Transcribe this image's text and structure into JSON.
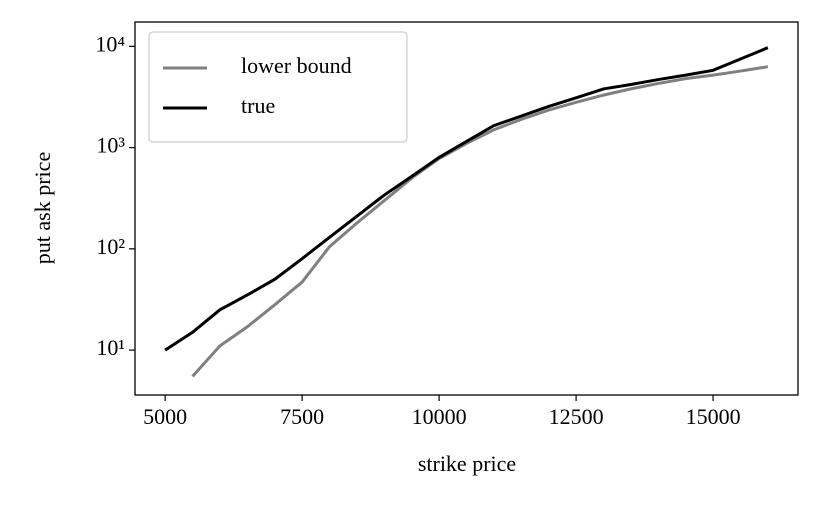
{
  "chart_data": {
    "type": "line",
    "log_y": true,
    "grid": false,
    "legend": "upper left",
    "xlabel": "strike price",
    "ylabel": "put ask price",
    "x": [
      5000,
      5500,
      6000,
      6500,
      7000,
      7500,
      8000,
      8500,
      9000,
      9500,
      10000,
      10500,
      11000,
      11500,
      12000,
      12500,
      13000,
      13500,
      14000,
      14500,
      15000,
      15500,
      16000
    ],
    "series": [
      {
        "name": "lower bound",
        "color": "#808080",
        "values": [
          null,
          5.5,
          11,
          17,
          28,
          47,
          105,
          180,
          300,
          500,
          780,
          1100,
          1500,
          1900,
          2350,
          2800,
          3300,
          3800,
          4300,
          4800,
          5200,
          5700,
          6300
        ]
      },
      {
        "name": "true",
        "color": "#000000",
        "values": [
          10,
          15,
          25,
          35,
          50,
          80,
          130,
          210,
          340,
          520,
          800,
          1150,
          1650,
          2050,
          2550,
          3100,
          3800,
          4200,
          4700,
          5200,
          5800,
          7500,
          9700
        ]
      }
    ],
    "xlim": [
      4450,
      16550
    ],
    "xticks": [
      5000,
      7500,
      10000,
      12500,
      15000
    ],
    "ylim": [
      3.6,
      17400
    ],
    "yticks": [
      {
        "value": 10,
        "label": "10¹"
      },
      {
        "value": 100,
        "label": "10²"
      },
      {
        "value": 1000,
        "label": "10³"
      },
      {
        "value": 10000,
        "label": "10⁴"
      }
    ]
  }
}
